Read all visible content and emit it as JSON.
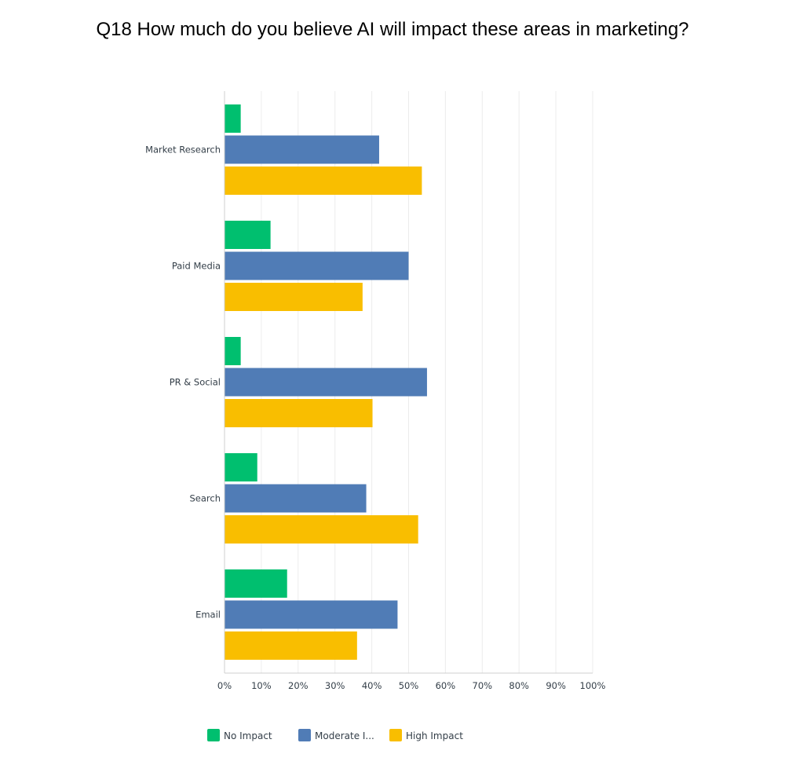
{
  "chart_data": {
    "type": "bar",
    "orientation": "horizontal",
    "title": "Q18 How much do you believe AI will impact these areas in marketing?",
    "categories": [
      "Market Research",
      "Paid Media",
      "PR & Social",
      "Search",
      "Email"
    ],
    "series": [
      {
        "name": "No Impact",
        "legend_label": "No Impact",
        "color": "#00bf6f",
        "values": [
          4.4,
          12.5,
          4.4,
          8.9,
          17.0
        ]
      },
      {
        "name": "Moderate Impact",
        "legend_label": "Moderate I...",
        "color": "#507cb6",
        "values": [
          42.0,
          50.0,
          55.0,
          38.5,
          47.0
        ]
      },
      {
        "name": "High Impact",
        "legend_label": "High Impact",
        "color": "#f9be00",
        "values": [
          53.6,
          37.5,
          40.2,
          52.6,
          36.0
        ]
      }
    ],
    "xlim": [
      0,
      100
    ],
    "ticks": [
      "0%",
      "10%",
      "20%",
      "30%",
      "40%",
      "50%",
      "60%",
      "70%",
      "80%",
      "90%",
      "100%"
    ],
    "grid": true,
    "legend_position": "bottom-left"
  }
}
